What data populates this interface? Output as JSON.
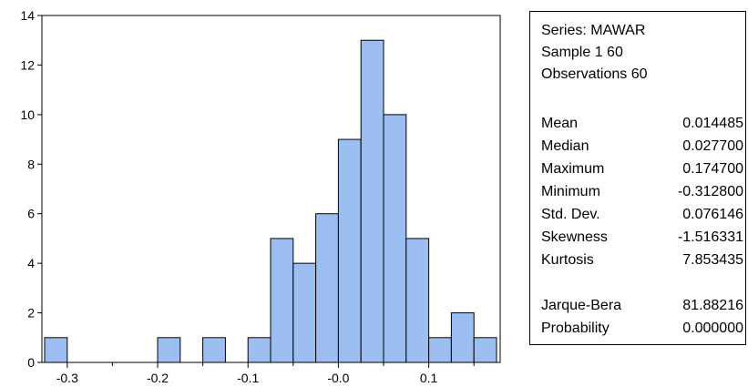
{
  "chart_data": {
    "type": "bar",
    "subtype": "histogram",
    "bin_width": 0.025,
    "bins": [
      {
        "start": -0.325,
        "end": -0.3,
        "count": 1
      },
      {
        "start": -0.3,
        "end": -0.275,
        "count": 0
      },
      {
        "start": -0.275,
        "end": -0.25,
        "count": 0
      },
      {
        "start": -0.25,
        "end": -0.225,
        "count": 0
      },
      {
        "start": -0.225,
        "end": -0.2,
        "count": 0
      },
      {
        "start": -0.2,
        "end": -0.175,
        "count": 1
      },
      {
        "start": -0.175,
        "end": -0.15,
        "count": 0
      },
      {
        "start": -0.15,
        "end": -0.125,
        "count": 1
      },
      {
        "start": -0.125,
        "end": -0.1,
        "count": 0
      },
      {
        "start": -0.1,
        "end": -0.075,
        "count": 1
      },
      {
        "start": -0.075,
        "end": -0.05,
        "count": 5
      },
      {
        "start": -0.05,
        "end": -0.025,
        "count": 4
      },
      {
        "start": -0.025,
        "end": 0.0,
        "count": 6
      },
      {
        "start": 0.0,
        "end": 0.025,
        "count": 9
      },
      {
        "start": 0.025,
        "end": 0.05,
        "count": 13
      },
      {
        "start": 0.05,
        "end": 0.075,
        "count": 10
      },
      {
        "start": 0.075,
        "end": 0.1,
        "count": 5
      },
      {
        "start": 0.1,
        "end": 0.125,
        "count": 1
      },
      {
        "start": 0.125,
        "end": 0.15,
        "count": 2
      },
      {
        "start": 0.15,
        "end": 0.175,
        "count": 1
      }
    ],
    "xlim": [
      -0.325,
      0.175
    ],
    "ylim": [
      0,
      14
    ],
    "x_ticks": [
      {
        "value": -0.3,
        "label": "-0.3"
      },
      {
        "value": -0.2,
        "label": "-0.2"
      },
      {
        "value": -0.1,
        "label": "-0.1"
      },
      {
        "value": 0.0,
        "label": "-0.0"
      },
      {
        "value": 0.1,
        "label": "0.1"
      }
    ],
    "y_ticks": [
      {
        "value": 0,
        "label": "0"
      },
      {
        "value": 2,
        "label": "2"
      },
      {
        "value": 4,
        "label": "4"
      },
      {
        "value": 6,
        "label": "6"
      },
      {
        "value": 8,
        "label": "8"
      },
      {
        "value": 10,
        "label": "10"
      },
      {
        "value": 12,
        "label": "12"
      },
      {
        "value": 14,
        "label": "14"
      }
    ],
    "bar_color": "#9dbef0",
    "bar_edge_color": "#000000",
    "grid": false,
    "title": "",
    "xlabel": "",
    "ylabel": ""
  },
  "stats": {
    "series_line": "Series: MAWAR",
    "sample_line": "Sample 1 60",
    "observations_line": "Observations 60",
    "rows": [
      {
        "label": "Mean",
        "value": "0.014485"
      },
      {
        "label": "Median",
        "value": "0.027700"
      },
      {
        "label": "Maximum",
        "value": "0.174700"
      },
      {
        "label": "Minimum",
        "value": "-0.312800"
      },
      {
        "label": "Std. Dev.",
        "value": "0.076146"
      },
      {
        "label": "Skewness",
        "value": "-1.516331"
      },
      {
        "label": "Kurtosis",
        "value": "7.853435"
      }
    ],
    "test_rows": [
      {
        "label": "Jarque-Bera",
        "value": "81.88216"
      },
      {
        "label": "Probability",
        "value": "0.000000"
      }
    ]
  }
}
